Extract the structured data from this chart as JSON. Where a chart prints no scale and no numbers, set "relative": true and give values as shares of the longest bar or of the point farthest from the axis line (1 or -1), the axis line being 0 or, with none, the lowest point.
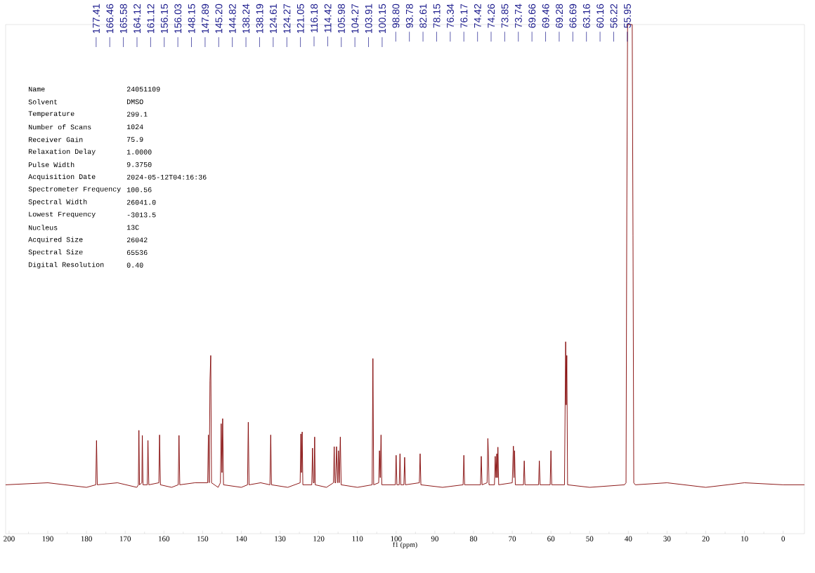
{
  "chart_data": {
    "type": "line",
    "relative": true,
    "xlabel": "f1 (ppm)",
    "xlim": [
      200.9,
      -5.5
    ],
    "xticks": [
      200,
      190,
      180,
      170,
      160,
      150,
      140,
      130,
      120,
      110,
      100,
      90,
      80,
      70,
      60,
      50,
      40,
      30,
      20,
      10,
      0
    ],
    "series": [
      {
        "color": "#800000",
        "x": [
          200.9,
          190,
          180,
          177.6,
          177.41,
          177.2,
          172,
          167,
          166.6,
          166.46,
          166.3,
          165.7,
          165.58,
          165.4,
          164.3,
          164.12,
          163.9,
          161.3,
          161.12,
          160.9,
          158,
          156.3,
          156.1,
          155.9,
          152,
          148.7,
          148.5,
          148.3,
          148.1,
          147.9,
          147.7,
          146,
          145.4,
          145.2,
          145.0,
          144.82,
          144.6,
          140,
          138.4,
          138.2,
          138.0,
          135,
          132.6,
          132.4,
          132.2,
          128,
          124.8,
          124.61,
          124.45,
          124.27,
          124.1,
          121.8,
          121.6,
          121.4,
          121.2,
          121.05,
          120.9,
          118,
          116.2,
          116.0,
          115.8,
          115.6,
          115.4,
          115.1,
          114.9,
          114.7,
          114.42,
          114.2,
          110,
          106.2,
          106.0,
          105.8,
          104.5,
          104.3,
          104.1,
          103.9,
          103.7,
          100.2,
          100.0,
          99.8,
          99.2,
          99.0,
          98.8,
          98.0,
          97.8,
          97.6,
          94.0,
          93.8,
          93.6,
          88,
          82.7,
          82.5,
          82.3,
          78.2,
          78.0,
          77.8,
          76.5,
          76.3,
          76.15,
          76.0,
          74.6,
          74.4,
          74.2,
          74.0,
          73.85,
          73.7,
          73.5,
          70,
          69.7,
          69.55,
          69.4,
          69.2,
          67.1,
          66.9,
          66.7,
          63.2,
          63.0,
          62.8,
          60.2,
          60.0,
          59.8,
          56.5,
          56.2,
          56.05,
          55.9,
          55.7,
          50,
          41,
          40.6,
          40.4,
          40.2,
          39.9,
          39.6,
          39.3,
          39.0,
          38.8,
          38.6,
          38.2,
          30,
          20,
          10,
          0,
          -5.5
        ],
        "values": [
          0.096,
          0.1,
          0.091,
          0.096,
          0.183,
          0.096,
          0.1,
          0.091,
          0.096,
          0.203,
          0.096,
          0.1,
          0.193,
          0.096,
          0.096,
          0.183,
          0.096,
          0.1,
          0.194,
          0.096,
          0.091,
          0.096,
          0.193,
          0.096,
          0.1,
          0.1,
          0.194,
          0.1,
          0.3,
          0.35,
          0.1,
          0.091,
          0.1,
          0.216,
          0.12,
          0.226,
          0.096,
          0.091,
          0.096,
          0.219,
          0.096,
          0.1,
          0.096,
          0.194,
          0.096,
          0.091,
          0.1,
          0.196,
          0.12,
          0.2,
          0.096,
          0.096,
          0.168,
          0.1,
          0.1,
          0.19,
          0.096,
          0.091,
          0.1,
          0.171,
          0.1,
          0.1,
          0.171,
          0.1,
          0.163,
          0.1,
          0.19,
          0.096,
          0.091,
          0.096,
          0.344,
          0.096,
          0.1,
          0.163,
          0.11,
          0.194,
          0.096,
          0.096,
          0.154,
          0.096,
          0.096,
          0.157,
          0.096,
          0.096,
          0.15,
          0.096,
          0.1,
          0.157,
          0.096,
          0.091,
          0.096,
          0.154,
          0.096,
          0.096,
          0.152,
          0.096,
          0.1,
          0.187,
          0.157,
          0.096,
          0.096,
          0.152,
          0.11,
          0.157,
          0.11,
          0.17,
          0.096,
          0.1,
          0.172,
          0.11,
          0.163,
          0.096,
          0.096,
          0.143,
          0.096,
          0.096,
          0.143,
          0.096,
          0.096,
          0.163,
          0.096,
          0.096,
          0.377,
          0.253,
          0.35,
          0.096,
          0.091,
          0.096,
          0.1,
          0.633,
          1,
          1,
          1,
          1,
          1,
          0.585,
          0.1,
          0.096,
          0.1,
          0.091,
          0.1,
          0.096,
          0.096
        ]
      }
    ],
    "annotations": [
      "177.41",
      "166.46",
      "165.58",
      "164.12",
      "161.12",
      "156.15",
      "156.03",
      "148.15",
      "147.89",
      "145.20",
      "144.82",
      "138.24",
      "138.19",
      "124.61",
      "124.27",
      "121.05",
      "116.18",
      "114.42",
      "105.98",
      "104.27",
      "103.91",
      "100.15",
      "98.80",
      "93.78",
      "82.61",
      "78.15",
      "76.34",
      "76.17",
      "74.42",
      "74.26",
      "73.85",
      "73.74",
      "69.66",
      "69.46",
      "69.28",
      "66.69",
      "63.16",
      "60.16",
      "56.22",
      "55.95",
      "Name",
      "24051109",
      "Solvent",
      "DMSO",
      "Temperature",
      "299.1",
      "Number of Scans",
      "1024",
      "Receiver Gain",
      "75.9",
      "Relaxation Delay",
      "1.0000",
      "Pulse Width",
      "9.3750",
      "Acquisition Date",
      "2024-05-12T04:16:36",
      "Spectrometer Frequency",
      "100.56",
      "Spectral Width",
      "26041.0",
      "Lowest Frequency",
      "-3013.5",
      "Nucleus",
      "13C",
      "Acquired Size",
      "26042",
      "Spectral Size",
      "65536",
      "Digital Resolution",
      "0.40"
    ]
  }
}
